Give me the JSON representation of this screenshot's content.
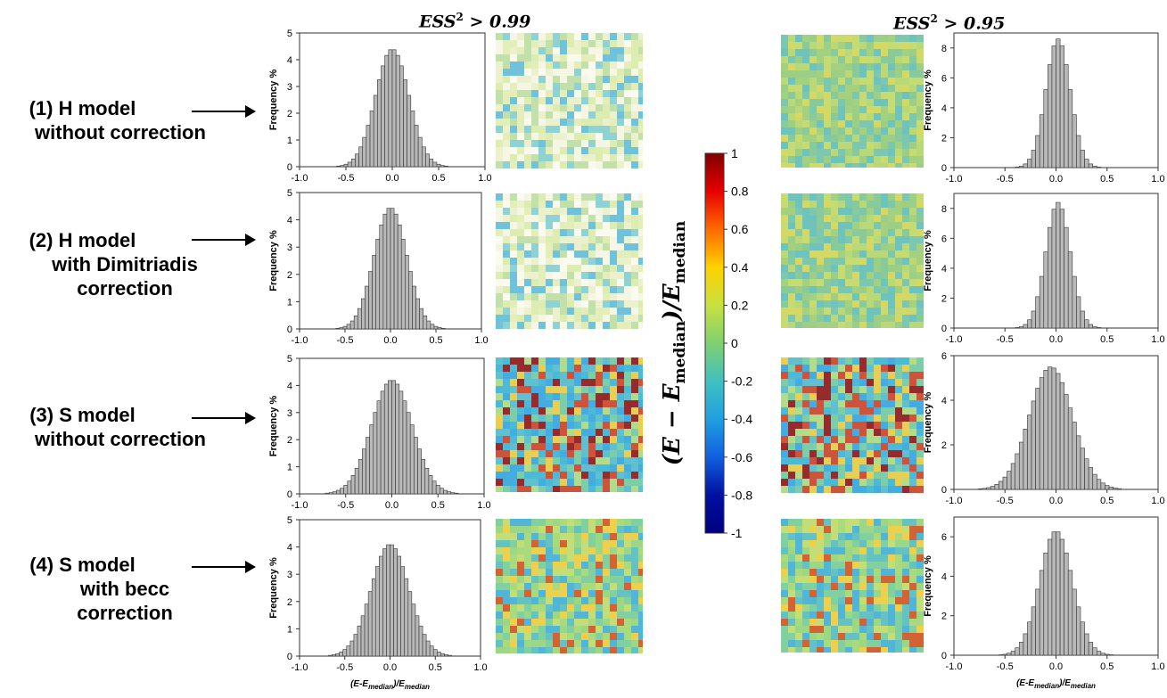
{
  "headers": {
    "left": {
      "base": "ESS",
      "sup": "2",
      "rest": " > 0.99"
    },
    "right": {
      "base": "ESS",
      "sup": "2",
      "rest": " > 0.95"
    }
  },
  "row_labels": [
    [
      "(1) H model",
      "without correction"
    ],
    [
      "(2) H model",
      "with Dimitriadis",
      "correction"
    ],
    [
      "(3) S model",
      "without correction"
    ],
    [
      "(4) S model",
      "with becc",
      "correction"
    ]
  ],
  "colorbar": {
    "title": "(E − E",
    "title_sub": "median",
    "title_end": ")/E",
    "title_sub2": "median",
    "ticks": [
      "1",
      "0.8",
      "0.6",
      "0.4",
      "0.2",
      "0",
      "-0.2",
      "-0.4",
      "-0.6",
      "-0.8",
      "-1"
    ],
    "colors": [
      "#800000",
      "#e60000",
      "#ff6a00",
      "#ffd200",
      "#c8e040",
      "#80d070",
      "#40c0c0",
      "#20a0e0",
      "#1060e0",
      "#0010a0",
      "#000080"
    ]
  },
  "xlabel_main": "(E-E",
  "xlabel_sub": "median",
  "xlabel_end": ")/E",
  "xlabel_sub2": "median",
  "chart_data": [
    {
      "type": "bar",
      "id": "L1",
      "ylabel": "Frequency %",
      "ylim": [
        0,
        5
      ],
      "yticks": [
        "0",
        "1",
        "2",
        "3",
        "4",
        "5"
      ],
      "xlim": [
        -1,
        1
      ],
      "xticks": [
        "-1.0",
        "-0.5",
        "0.0",
        "0.5",
        "1.0"
      ],
      "center": 0.0,
      "sigma": 0.18,
      "peak": 4.4
    },
    {
      "type": "bar",
      "id": "L2",
      "ylabel": "Frequency %",
      "ylim": [
        0,
        5
      ],
      "yticks": [
        "0",
        "1",
        "2",
        "3",
        "4",
        "5"
      ],
      "xlim": [
        -1,
        1
      ],
      "xticks": [
        "-1.0",
        "-0.5",
        "0.0",
        "0.5",
        "1.0"
      ],
      "center": 0.0,
      "sigma": 0.18,
      "peak": 4.45
    },
    {
      "type": "bar",
      "id": "L3",
      "ylabel": "Frequency %",
      "ylim": [
        0,
        5
      ],
      "yticks": [
        "0",
        "1",
        "2",
        "3",
        "4",
        "5"
      ],
      "xlim": [
        -1,
        1
      ],
      "xticks": [
        "-1.0",
        "-0.5",
        "0.0",
        "0.5",
        "1.0"
      ],
      "center": 0.0,
      "sigma": 0.22,
      "peak": 4.2
    },
    {
      "type": "bar",
      "id": "L4",
      "ylabel": "Frequency %",
      "ylim": [
        0,
        5
      ],
      "yticks": [
        "0",
        "1",
        "2",
        "3",
        "4",
        "5"
      ],
      "xlim": [
        -1,
        1
      ],
      "xticks": [
        "-1.0",
        "-0.5",
        "0.0",
        "0.5",
        "1.0"
      ],
      "center": 0.0,
      "sigma": 0.21,
      "peak": 4.1
    },
    {
      "type": "bar",
      "id": "R1",
      "ylabel": "Frequency %",
      "ylim": [
        0,
        9
      ],
      "yticks": [
        "0",
        "2",
        "4",
        "6",
        "8"
      ],
      "xlim": [
        -1,
        1
      ],
      "xticks": [
        "-1.0",
        "-0.5",
        "0.0",
        "0.5",
        "1.0"
      ],
      "center": 0.02,
      "sigma": 0.12,
      "peak": 8.6
    },
    {
      "type": "bar",
      "id": "R2",
      "ylabel": "Frequency %",
      "ylim": [
        0,
        9
      ],
      "yticks": [
        "0",
        "2",
        "4",
        "6",
        "8"
      ],
      "xlim": [
        -1,
        1
      ],
      "xticks": [
        "-1.0",
        "-0.5",
        "0.0",
        "0.5",
        "1.0"
      ],
      "center": 0.02,
      "sigma": 0.12,
      "peak": 8.4
    },
    {
      "type": "bar",
      "id": "R3",
      "ylabel": "Frequency %",
      "ylim": [
        0,
        6
      ],
      "yticks": [
        "0",
        "2",
        "4",
        "6"
      ],
      "xlim": [
        -1,
        1
      ],
      "xticks": [
        "-1.0",
        "-0.5",
        "0.0",
        "0.5",
        "1.0"
      ],
      "center": -0.05,
      "sigma": 0.21,
      "peak": 5.5
    },
    {
      "type": "bar",
      "id": "R4",
      "ylabel": "Frequency %",
      "ylim": [
        0,
        7
      ],
      "yticks": [
        "0",
        "2",
        "4",
        "6"
      ],
      "xlim": [
        -1,
        1
      ],
      "xticks": [
        "-1.0",
        "-0.5",
        "0.0",
        "0.5",
        "1.0"
      ],
      "center": 0.0,
      "sigma": 0.16,
      "peak": 6.3
    }
  ],
  "maps": [
    {
      "id": "ML1",
      "style": "pale"
    },
    {
      "id": "ML2",
      "style": "pale"
    },
    {
      "id": "ML3",
      "style": "hot"
    },
    {
      "id": "ML4",
      "style": "warm"
    },
    {
      "id": "MR1",
      "style": "green"
    },
    {
      "id": "MR2",
      "style": "green"
    },
    {
      "id": "MR3",
      "style": "hot"
    },
    {
      "id": "MR4",
      "style": "warm"
    }
  ]
}
